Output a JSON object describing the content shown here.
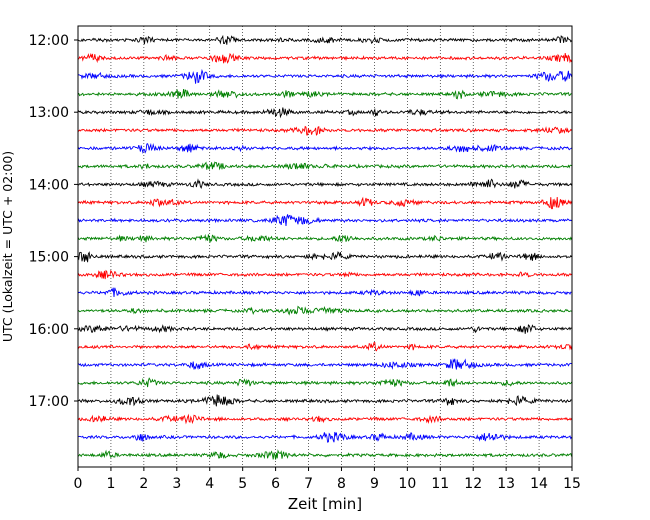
{
  "chart_data": {
    "type": "line",
    "title": "",
    "xlabel": "Zeit  [min]",
    "ylabel": "UTC (Lokalzeit = UTC + 02:00)",
    "xlim": [
      0,
      15
    ],
    "x_ticks": [
      "0",
      "1",
      "2",
      "3",
      "4",
      "5",
      "6",
      "7",
      "8",
      "9",
      "10",
      "11",
      "12",
      "13",
      "14",
      "15"
    ],
    "y_ticks": [
      "12:00",
      "13:00",
      "14:00",
      "15:00",
      "16:00",
      "17:00"
    ],
    "grid": "vertical dotted lines at each minute",
    "trace_interval_min": 15,
    "trace_colors": [
      "#000000",
      "#ff0000",
      "#0000ff",
      "#008000"
    ],
    "traces": [
      {
        "start": "12:00",
        "color": "#000000"
      },
      {
        "start": "12:15",
        "color": "#ff0000"
      },
      {
        "start": "12:30",
        "color": "#0000ff"
      },
      {
        "start": "12:45",
        "color": "#008000"
      },
      {
        "start": "13:00",
        "color": "#000000"
      },
      {
        "start": "13:15",
        "color": "#ff0000"
      },
      {
        "start": "13:30",
        "color": "#0000ff"
      },
      {
        "start": "13:45",
        "color": "#008000"
      },
      {
        "start": "14:00",
        "color": "#000000"
      },
      {
        "start": "14:15",
        "color": "#ff0000"
      },
      {
        "start": "14:30",
        "color": "#0000ff"
      },
      {
        "start": "14:45",
        "color": "#008000"
      },
      {
        "start": "15:00",
        "color": "#000000"
      },
      {
        "start": "15:15",
        "color": "#ff0000"
      },
      {
        "start": "15:30",
        "color": "#0000ff"
      },
      {
        "start": "15:45",
        "color": "#008000"
      },
      {
        "start": "16:00",
        "color": "#000000"
      },
      {
        "start": "16:15",
        "color": "#ff0000"
      },
      {
        "start": "16:30",
        "color": "#0000ff"
      },
      {
        "start": "16:45",
        "color": "#008000"
      },
      {
        "start": "17:00",
        "color": "#000000"
      },
      {
        "start": "17:15",
        "color": "#ff0000"
      },
      {
        "start": "17:30",
        "color": "#0000ff"
      },
      {
        "start": "17:45",
        "color": "#008000"
      }
    ]
  }
}
